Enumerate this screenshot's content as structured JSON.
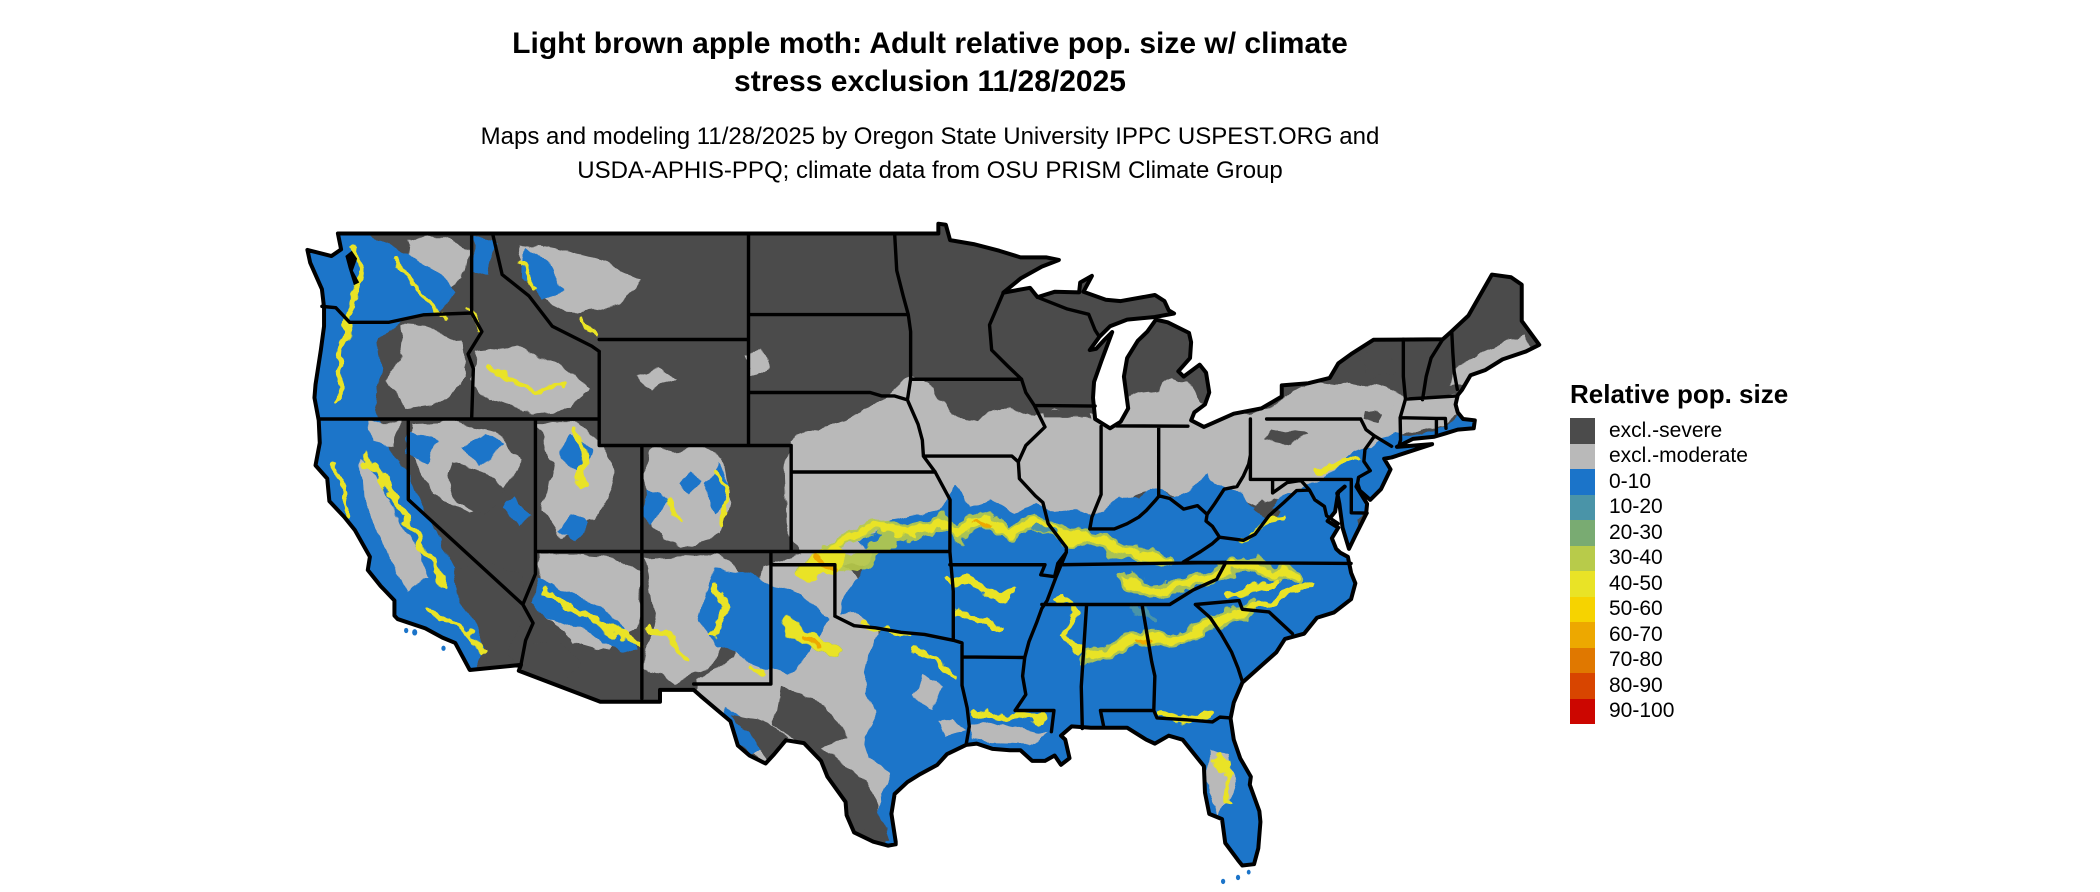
{
  "title": {
    "line1": "Light brown apple moth: Adult relative pop. size w/ climate",
    "line2": "stress exclusion 11/28/2025"
  },
  "subtitle": {
    "line1": "Maps and modeling 11/28/2025 by Oregon State University IPPC USPEST.ORG and",
    "line2": "USDA-APHIS-PPQ; climate data from OSU PRISM Climate Group"
  },
  "legend": {
    "title": "Relative pop. size",
    "items": [
      {
        "label": "excl.-severe",
        "color": "#4b4b4b"
      },
      {
        "label": "excl.-moderate",
        "color": "#b9b9b9"
      },
      {
        "label": "0-10",
        "color": "#1b74c9"
      },
      {
        "label": "10-20",
        "color": "#4a94a8"
      },
      {
        "label": "20-30",
        "color": "#79ab72"
      },
      {
        "label": "30-40",
        "color": "#b8cb4a"
      },
      {
        "label": "40-50",
        "color": "#e9e326"
      },
      {
        "label": "50-60",
        "color": "#f6d300"
      },
      {
        "label": "60-70",
        "color": "#eda800"
      },
      {
        "label": "70-80",
        "color": "#e07800"
      },
      {
        "label": "80-90",
        "color": "#d84500"
      },
      {
        "label": "90-100",
        "color": "#cc0600"
      }
    ]
  },
  "map": {
    "name": "Contiguous United States",
    "type": "raster choropleth with state boundaries",
    "date_shown": "11/28/2025"
  }
}
